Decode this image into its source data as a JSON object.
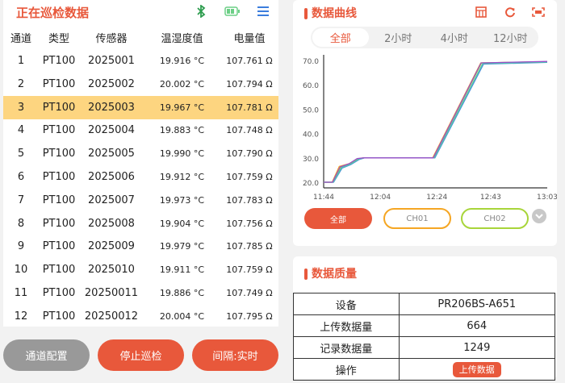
{
  "left": {
    "title": "正在巡检数据",
    "icons": [
      "bluetooth-icon",
      "battery-icon",
      "menu-icon"
    ],
    "headers": [
      "通道",
      "类型",
      "传感器",
      "温湿度值",
      "电量值"
    ],
    "selected_row": 3,
    "rows": [
      [
        "1",
        "PT100",
        "2025001",
        "19.916 °C",
        "107.761 Ω"
      ],
      [
        "2",
        "PT100",
        "2025002",
        "20.002 °C",
        "107.794 Ω"
      ],
      [
        "3",
        "PT100",
        "2025003",
        "19.967 °C",
        "107.781 Ω"
      ],
      [
        "4",
        "PT100",
        "2025004",
        "19.883 °C",
        "107.748 Ω"
      ],
      [
        "5",
        "PT100",
        "2025005",
        "19.990 °C",
        "107.790 Ω"
      ],
      [
        "6",
        "PT100",
        "2025006",
        "19.912 °C",
        "107.759 Ω"
      ],
      [
        "7",
        "PT100",
        "2025007",
        "19.973 °C",
        "107.783 Ω"
      ],
      [
        "8",
        "PT100",
        "2025008",
        "19.904 °C",
        "107.756 Ω"
      ],
      [
        "9",
        "PT100",
        "2025009",
        "19.979 °C",
        "107.785 Ω"
      ],
      [
        "10",
        "PT100",
        "2025010",
        "19.911 °C",
        "107.759 Ω"
      ],
      [
        "11",
        "PT100",
        "20250011",
        "19.886 °C",
        "107.749 Ω"
      ],
      [
        "12",
        "PT100",
        "20250012",
        "20.004 °C",
        "107.795 Ω"
      ]
    ],
    "buttons": {
      "config": "通道配置",
      "stop": "停止巡检",
      "interval": "间隔:实时"
    }
  },
  "curve": {
    "title": "数据曲线",
    "icons": [
      "table-icon",
      "refresh-icon",
      "fullscreen-icon"
    ],
    "tabs": [
      "全部",
      "2小时",
      "4小时",
      "12小时"
    ],
    "active_tab": 0,
    "filters": [
      "全部",
      "CH01",
      "CH02"
    ]
  },
  "chart_data": {
    "type": "line",
    "ylim": [
      20,
      70
    ],
    "yticks": [
      "20.0",
      "30.0",
      "40.0",
      "50.0",
      "60.0",
      "70.0"
    ],
    "xticks": [
      "11:44",
      "12:04",
      "12:24",
      "12:43",
      "13:03"
    ],
    "xlim": [
      "11:44",
      "13:03"
    ],
    "series": [
      {
        "color": "#f5a623",
        "points": [
          [
            "11:44",
            20
          ],
          [
            "11:47",
            20
          ],
          [
            "11:49.5",
            26.5
          ],
          [
            "11:53",
            27.6
          ],
          [
            "11:56",
            29.6
          ],
          [
            "11:58",
            30
          ],
          [
            "12:22.5",
            30
          ],
          [
            "12:39.5",
            69
          ],
          [
            "13:03",
            69.5
          ]
        ]
      },
      {
        "color": "#a8d53a",
        "points": [
          [
            "11:44",
            20
          ],
          [
            "11:47.2",
            20
          ],
          [
            "11:50",
            26
          ],
          [
            "11:53",
            27.4
          ],
          [
            "11:56",
            29.4
          ],
          [
            "11:58",
            30
          ],
          [
            "12:22.8",
            30
          ],
          [
            "12:39.8",
            69
          ],
          [
            "13:03",
            69.5
          ]
        ]
      },
      {
        "color": "#4a90d9",
        "points": [
          [
            "11:44",
            20
          ],
          [
            "11:47.5",
            20
          ],
          [
            "11:50.5",
            25.8
          ],
          [
            "11:53.5",
            27.2
          ],
          [
            "11:56.5",
            29.3
          ],
          [
            "11:58.5",
            30
          ],
          [
            "12:23.3",
            30
          ],
          [
            "12:40.5",
            68.5
          ],
          [
            "13:03",
            69.2
          ]
        ]
      },
      {
        "color": "#4fc3b0",
        "points": [
          [
            "11:44",
            20
          ],
          [
            "11:47.4",
            20
          ],
          [
            "11:50.3",
            26
          ],
          [
            "11:53.3",
            27.3
          ],
          [
            "11:56.3",
            29.4
          ],
          [
            "11:58.3",
            30
          ],
          [
            "12:23.1",
            30
          ],
          [
            "12:40.2",
            68.7
          ],
          [
            "13:03",
            69.3
          ]
        ]
      },
      {
        "color": "#9b4dca",
        "points": [
          [
            "11:44",
            20
          ],
          [
            "11:47.1",
            20
          ],
          [
            "11:49.8",
            26.3
          ],
          [
            "11:53",
            27.6
          ],
          [
            "11:55.8",
            29.7
          ],
          [
            "11:58",
            30
          ],
          [
            "12:22.7",
            30
          ],
          [
            "12:39.6",
            69
          ],
          [
            "13:03",
            69.6
          ]
        ]
      }
    ]
  },
  "quality": {
    "title": "数据质量",
    "rows": [
      [
        "设备",
        "PR206BS-A651"
      ],
      [
        "上传数据量",
        "664"
      ],
      [
        "记录数据量",
        "1249"
      ]
    ],
    "op_label": "操作",
    "upload": "上传数据"
  },
  "colors": {
    "accent": "#e8583b",
    "highlight": "#fdd580",
    "ch01": "#f5a623",
    "ch02": "#a8d53a"
  }
}
